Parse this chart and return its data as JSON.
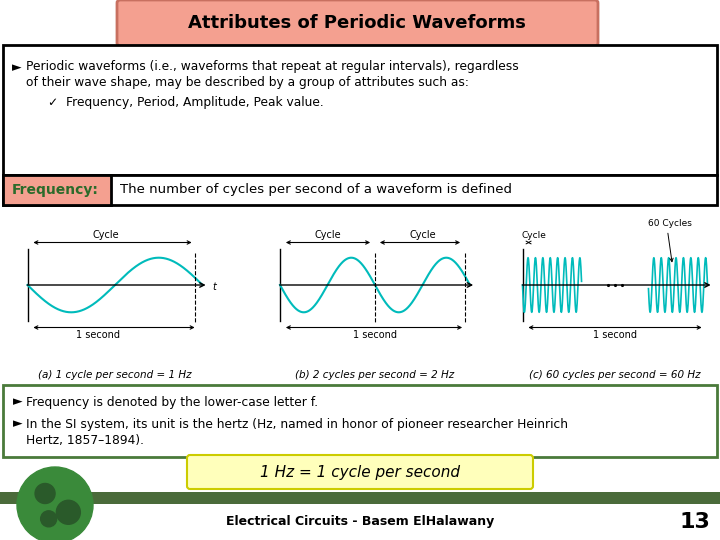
{
  "title": "Attributes of Periodic Waveforms",
  "title_bg": "#F4A090",
  "title_border": "#C87060",
  "bg_color": "#FFFFFF",
  "freq_label": "Frequency:",
  "freq_label_bg": "#F4A090",
  "freq_desc": "The number of cycles per second of a waveform is defined",
  "caption_a": "(a) 1 cycle per second = 1 Hz",
  "caption_b": "(b) 2 cycles per second = 2 Hz",
  "caption_c": "(c) 60 cycles per second = 60 Hz",
  "bullet2_text1": "Frequency is denoted by the lower-case letter f.",
  "bullet2_text2": "In the SI system, its unit is the hertz (Hz, named in honor of pioneer researcher Heinrich   Hertz, 1857–1894).",
  "formula": "1 Hz = 1 cycle per second",
  "wave_color": "#00BBBB",
  "footer_text": "Electrical Circuits - Basem ElHalawany",
  "footer_num": "13",
  "footer_bg": "#4A6B3A",
  "box1_border": "#000000",
  "box2_border": "#4A7A3A",
  "formula_bg_color": "#FFFFBB"
}
